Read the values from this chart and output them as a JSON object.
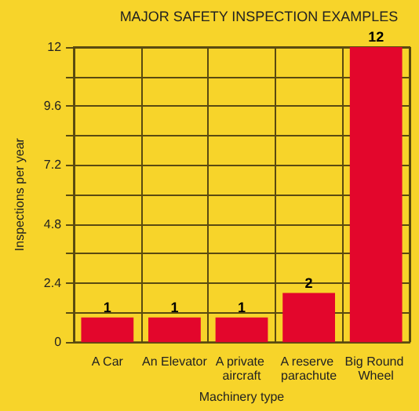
{
  "chart_data": {
    "type": "bar",
    "title": "MAJOR SAFETY INSPECTION EXAMPLES",
    "xlabel": "Machinery type",
    "ylabel": "Inspections per year",
    "categories": [
      "A Car",
      "An Elevator",
      "A private aircraft",
      "A reserve parachute",
      "Big Round Wheel"
    ],
    "values": [
      1,
      1,
      1,
      2,
      12
    ],
    "color": "#e3062c",
    "ylim": [
      0,
      12
    ],
    "yticks": [
      0,
      {
        "value": 1.2,
        "label": null
      },
      2.4,
      {
        "value": 3.6,
        "label": null
      },
      4.8,
      {
        "value": 6,
        "label": null
      },
      7.2,
      {
        "value": 8.4,
        "label": null
      },
      9.6,
      {
        "value": 10.8,
        "label": null
      },
      12
    ],
    "grid": true,
    "data_labels": true
  }
}
